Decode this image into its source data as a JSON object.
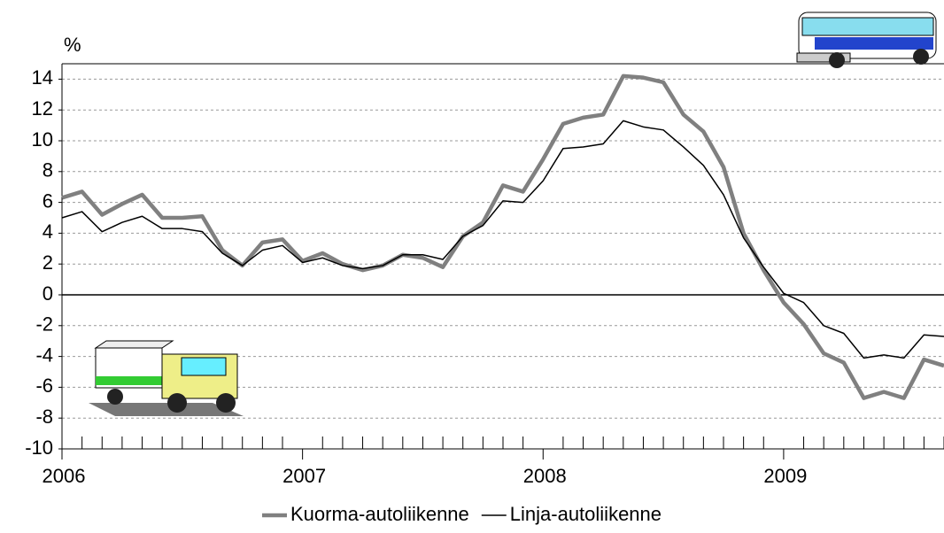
{
  "chart_data": {
    "type": "line",
    "y_unit_label": "%",
    "categories": [
      "2006",
      null,
      null,
      null,
      null,
      null,
      null,
      null,
      null,
      null,
      null,
      null,
      "2007",
      null,
      null,
      null,
      null,
      null,
      null,
      null,
      null,
      null,
      null,
      null,
      "2008",
      null,
      null,
      null,
      null,
      null,
      null,
      null,
      null,
      null,
      null,
      null,
      "2009",
      null,
      null,
      null,
      null,
      null,
      null,
      null,
      null
    ],
    "series": [
      {
        "name": "Kuorma-autoliikenne",
        "color": "#808080",
        "values": [
          6.3,
          6.7,
          5.2,
          5.9,
          6.5,
          5.0,
          5.0,
          5.1,
          2.9,
          1.9,
          3.4,
          3.6,
          2.2,
          2.7,
          2.0,
          1.6,
          1.9,
          2.6,
          2.4,
          1.8,
          3.8,
          4.7,
          7.1,
          6.7,
          8.8,
          11.1,
          11.5,
          11.7,
          14.2,
          14.1,
          13.8,
          11.7,
          10.6,
          8.3,
          4.0,
          1.6,
          -0.5,
          -1.9,
          -3.8,
          -4.4,
          -6.7,
          -6.3,
          -6.7,
          -4.2,
          -4.6
        ]
      },
      {
        "name": "Linja-autoliikenne",
        "color": "#000000",
        "values": [
          5.0,
          5.4,
          4.1,
          4.7,
          5.1,
          4.3,
          4.3,
          4.1,
          2.7,
          1.9,
          2.9,
          3.2,
          2.1,
          2.4,
          1.9,
          1.7,
          1.9,
          2.6,
          2.6,
          2.3,
          3.8,
          4.5,
          6.1,
          6.0,
          7.4,
          9.5,
          9.6,
          9.8,
          11.3,
          10.9,
          10.7,
          9.6,
          8.4,
          6.5,
          3.7,
          1.8,
          0.1,
          -0.5,
          -2.0,
          -2.5,
          -4.1,
          -3.9,
          -4.1,
          -2.6,
          -2.7
        ]
      }
    ],
    "ylim": [
      -10,
      15
    ],
    "yticks": [
      -10,
      -8,
      -6,
      -4,
      -2,
      0,
      2,
      4,
      6,
      8,
      10,
      12,
      14
    ],
    "grid": true,
    "legend": "bottom"
  }
}
